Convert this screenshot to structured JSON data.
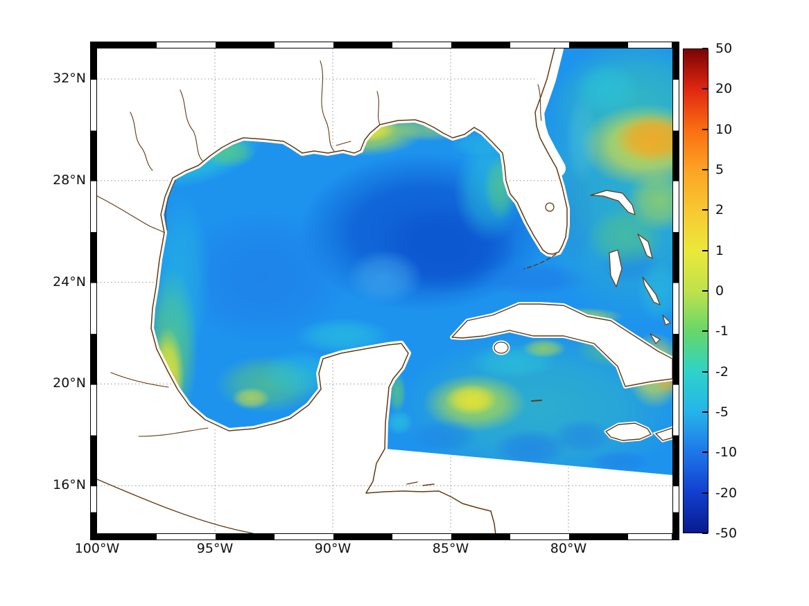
{
  "figure": {
    "background_color": "#ffffff",
    "land_color": "#ffffff",
    "coastline_color": "#63380e",
    "ocean_base_color": "#1d93ee",
    "grid_color": "#909090",
    "axes": {
      "x_tick_labels": [
        "100°W",
        "95°W",
        "90°W",
        "85°W",
        "80°W"
      ],
      "y_tick_labels": [
        "32°N",
        "28°N",
        "24°N",
        "20°N",
        "16°N"
      ]
    },
    "colorbar": {
      "tick_labels": [
        "50",
        "20",
        "10",
        "5",
        "2",
        "1",
        "0",
        "-1",
        "-2",
        "-5",
        "-10",
        "-20",
        "-50"
      ],
      "colors_top_to_bottom": [
        "#7a0403",
        "#e02711",
        "#fa6e12",
        "#fda324",
        "#f7c832",
        "#ece83a",
        "#bfe24b",
        "#67d668",
        "#2ed3c8",
        "#25b4ea",
        "#1e77e8",
        "#123fd0",
        "#081b8f"
      ]
    }
  },
  "chart_data": {
    "type": "heatmap",
    "title": "",
    "description": "Filled geographic field over the Gulf of Mexico, northwestern Caribbean and western North Atlantic; white areas are land or no-data; brown lines are coastlines; mostly negative (blue) values over open water with positive (yellow-orange) patches near coasts and in the Atlantic",
    "x_axis": {
      "label": "",
      "tick_labels": [
        "100°W",
        "95°W",
        "90°W",
        "85°W",
        "80°W"
      ],
      "range_deg_west": [
        100,
        75.6
      ]
    },
    "y_axis": {
      "label": "",
      "tick_labels": [
        "32°N",
        "28°N",
        "24°N",
        "20°N",
        "16°N"
      ],
      "range_deg_north": [
        14.1,
        33.2
      ]
    },
    "colorbar": {
      "tick_values": [
        50,
        20,
        10,
        5,
        2,
        1,
        0,
        -1,
        -2,
        -5,
        -10,
        -20,
        -50
      ],
      "scale": "nonlinear symmetric, ticks evenly spaced",
      "orientation": "vertical-right",
      "range": [
        -50,
        50
      ]
    },
    "field_features": [
      {
        "region": "central-eastern Gulf of Mexico deep water",
        "approx_value": -10
      },
      {
        "region": "western Gulf of Mexico interior",
        "approx_value": -5
      },
      {
        "region": "Texas shelf edge",
        "approx_value": -2
      },
      {
        "region": "Louisiana-Mississippi shelf near delta",
        "approx_value": 1
      },
      {
        "region": "Mexican coast near Tampico-Veracruz",
        "approx_value": 5
      },
      {
        "region": "Bay of Campeche coastal band",
        "approx_value": -1
      },
      {
        "region": "northern Yucatan shelf",
        "approx_value": -2
      },
      {
        "region": "West Florida shelf",
        "approx_value": -2
      },
      {
        "region": "NW Caribbean patch near 85W 19N",
        "approx_value": 1
      },
      {
        "region": "Straits of Florida / Gulf Stream",
        "approx_value": -5
      },
      {
        "region": "Atlantic blob near 76.5W 29.5N",
        "approx_value": 5
      },
      {
        "region": "Atlantic east of Bahamas",
        "approx_value": 0
      },
      {
        "region": "SE corner south of eastern Cuba",
        "approx_value": 2
      }
    ],
    "no_data_mask": "diagonal cutoff across the NW Caribbean from about (88W, 17.5N) to the right map edge near 16.5N; everything south of it is blank"
  }
}
